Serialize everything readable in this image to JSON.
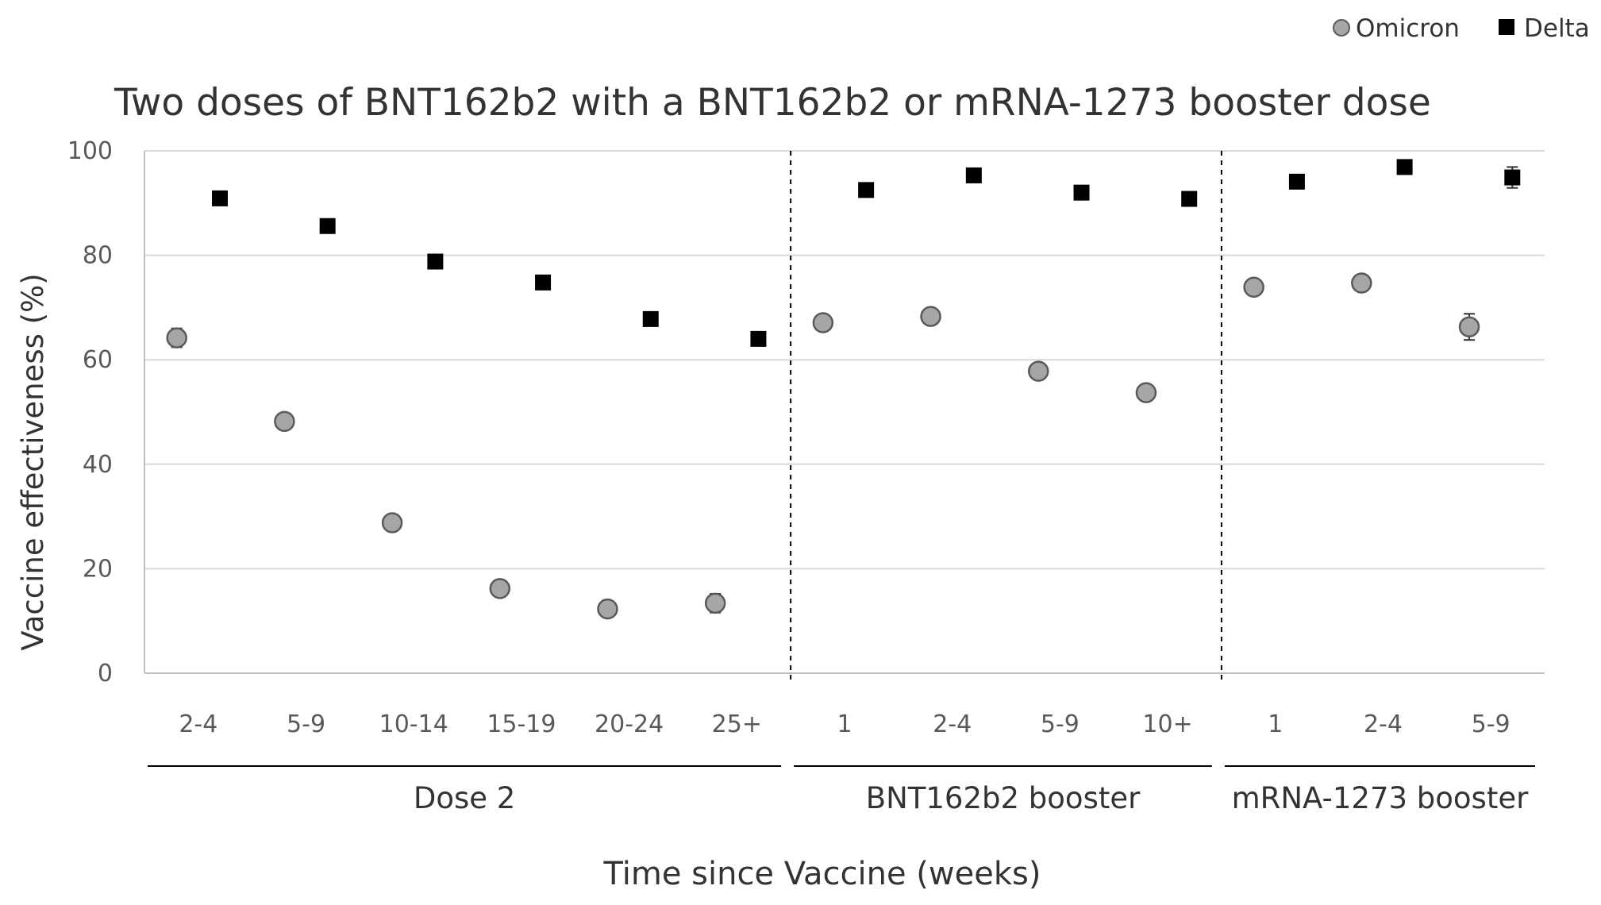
{
  "chart_data": {
    "type": "scatter",
    "title": "Two doses of BNT162b2 with a BNT162b2 or mRNA-1273 booster dose",
    "ylabel": "Vaccine effectiveness (%)",
    "xlabel": "Time since Vaccine (weeks)",
    "ylim": [
      0,
      100
    ],
    "yticks": [
      0,
      20,
      40,
      60,
      80,
      100
    ],
    "grid": true,
    "legend_position": "top-right",
    "groups": [
      {
        "label": "Dose 2",
        "categories": [
          "2-4",
          "5-9",
          "10-14",
          "15-19",
          "20-24",
          "25+"
        ]
      },
      {
        "label": "BNT162b2 booster",
        "categories": [
          "1",
          "2-4",
          "5-9",
          "10+"
        ]
      },
      {
        "label": "mRNA-1273 booster",
        "categories": [
          "1",
          "2-4",
          "5-9"
        ]
      }
    ],
    "series": [
      {
        "name": "Omicron",
        "marker": "circle",
        "color": "#a6a6a6",
        "values": [
          64.2,
          48.2,
          28.8,
          16.2,
          12.3,
          13.4,
          67.1,
          68.3,
          57.8,
          53.7,
          73.9,
          74.7,
          66.3
        ],
        "error": [
          1.8,
          1.5,
          1.0,
          0.8,
          0.8,
          1.8,
          0.7,
          0.8,
          0.8,
          0.8,
          0.8,
          0.8,
          2.5
        ]
      },
      {
        "name": "Delta",
        "marker": "square",
        "color": "#000000",
        "values": [
          90.9,
          85.6,
          78.8,
          74.8,
          67.8,
          64.0,
          92.5,
          95.3,
          92.0,
          90.8,
          94.1,
          96.9,
          94.9
        ],
        "error": [
          0.5,
          0.5,
          0.5,
          0.6,
          0.8,
          0.8,
          0.4,
          0.4,
          0.4,
          0.4,
          0.6,
          0.6,
          2.0
        ]
      }
    ]
  },
  "colors": {
    "gridline": "#d9d9d9",
    "axis": "#bfbfbf",
    "omicron": "#a6a6a6",
    "delta": "#000000"
  }
}
